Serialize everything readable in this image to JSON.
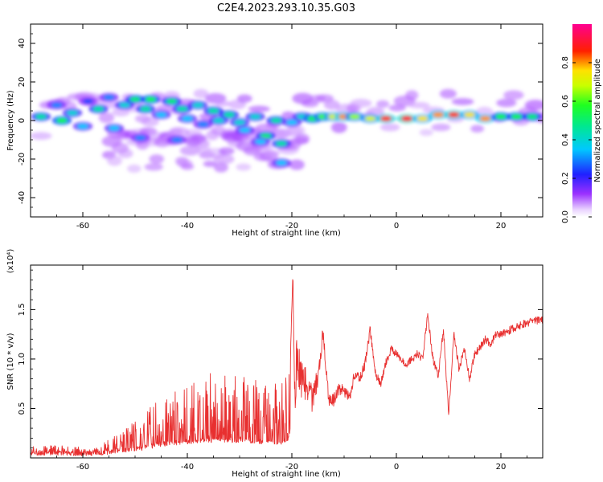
{
  "title": "C2E4.2023.293.10.35.G03",
  "chart_data": [
    {
      "type": "heatmap",
      "title": "C2E4.2023.293.10.35.G03",
      "xlabel": "Height of straight line (km)",
      "ylabel": "Frequency (Hz)",
      "xlim": [
        -70,
        28
      ],
      "ylim": [
        -50,
        50
      ],
      "xticks": [
        -60,
        -40,
        -20,
        0,
        20
      ],
      "yticks": [
        -40,
        -20,
        0,
        20,
        40
      ],
      "colorbar": {
        "label": "Normalized spectral amplitude",
        "range": [
          0,
          1
        ],
        "ticks": [
          "0.0",
          "0.2",
          "0.4",
          "0.6",
          "0.8"
        ],
        "colormap": "rainbow (purple-blue-cyan-green-yellow-red-magenta)"
      },
      "features": [
        {
          "name": "main band",
          "x": [
            -68,
            28
          ],
          "freq": [
            -8,
            14
          ],
          "note": "descends from ~+10 Hz near -55 km to ~0 Hz near -18 km, then flat near +2 Hz"
        },
        {
          "name": "lower branch",
          "x": [
            -55,
            -18
          ],
          "freq": [
            -25,
            -5
          ],
          "note": "descending weaker branch"
        }
      ],
      "blobs": [
        {
          "x": -68,
          "f": 2,
          "v": 0.45
        },
        {
          "x": -65,
          "f": 8,
          "v": 0.3
        },
        {
          "x": -64,
          "f": 0,
          "v": 0.55
        },
        {
          "x": -62,
          "f": 4,
          "v": 0.4
        },
        {
          "x": -60,
          "f": -3,
          "v": 0.35
        },
        {
          "x": -59,
          "f": 10,
          "v": 0.25
        },
        {
          "x": -57,
          "f": 6,
          "v": 0.45
        },
        {
          "x": -55,
          "f": 12,
          "v": 0.3
        },
        {
          "x": -54,
          "f": -4,
          "v": 0.35
        },
        {
          "x": -52,
          "f": 8,
          "v": 0.4
        },
        {
          "x": -50,
          "f": 11,
          "v": 0.5
        },
        {
          "x": -48,
          "f": 6,
          "v": 0.45
        },
        {
          "x": -47,
          "f": 11,
          "v": 0.55
        },
        {
          "x": -45,
          "f": 3,
          "v": 0.35
        },
        {
          "x": -43,
          "f": 10,
          "v": 0.5
        },
        {
          "x": -41,
          "f": 6,
          "v": 0.45
        },
        {
          "x": -40,
          "f": 1,
          "v": 0.35
        },
        {
          "x": -38,
          "f": 8,
          "v": 0.4
        },
        {
          "x": -37,
          "f": -2,
          "v": 0.3
        },
        {
          "x": -35,
          "f": 5,
          "v": 0.45
        },
        {
          "x": -34,
          "f": 0,
          "v": 0.4
        },
        {
          "x": -32,
          "f": 3,
          "v": 0.45
        },
        {
          "x": -30,
          "f": -1,
          "v": 0.4
        },
        {
          "x": -29,
          "f": -5,
          "v": 0.35
        },
        {
          "x": -27,
          "f": 2,
          "v": 0.4
        },
        {
          "x": -25,
          "f": -8,
          "v": 0.5
        },
        {
          "x": -23,
          "f": 0,
          "v": 0.45
        },
        {
          "x": -22,
          "f": -12,
          "v": 0.45
        },
        {
          "x": -20,
          "f": -1,
          "v": 0.35
        },
        {
          "x": -18,
          "f": 2,
          "v": 0.4
        },
        {
          "x": -49,
          "f": -9,
          "v": 0.3
        },
        {
          "x": -42,
          "f": -10,
          "v": 0.3
        },
        {
          "x": -26,
          "f": -11,
          "v": 0.35
        },
        {
          "x": -22,
          "f": -22,
          "v": 0.35
        },
        {
          "x": -16,
          "f": 1,
          "v": 0.55
        },
        {
          "x": -14,
          "f": 2,
          "v": 0.6
        },
        {
          "x": -12,
          "f": 2,
          "v": 0.7
        },
        {
          "x": -10,
          "f": 2,
          "v": 0.8
        },
        {
          "x": -8,
          "f": 2,
          "v": 0.65
        },
        {
          "x": -5,
          "f": 1,
          "v": 0.7
        },
        {
          "x": -2,
          "f": 1,
          "v": 0.85
        },
        {
          "x": 2,
          "f": 1,
          "v": 0.9
        },
        {
          "x": 5,
          "f": 1,
          "v": 0.75
        },
        {
          "x": 8,
          "f": 3,
          "v": 0.8
        },
        {
          "x": 11,
          "f": 3,
          "v": 0.85
        },
        {
          "x": 14,
          "f": 3,
          "v": 0.75
        },
        {
          "x": 17,
          "f": 1,
          "v": 0.8
        },
        {
          "x": 20,
          "f": 2,
          "v": 0.55
        },
        {
          "x": 23,
          "f": 2,
          "v": 0.55
        },
        {
          "x": 26,
          "f": 2,
          "v": 0.5
        }
      ]
    },
    {
      "type": "line",
      "xlabel": "Height of straight line (km)",
      "ylabel": "SNR (10 * v/v)",
      "y_multiplier": "(x10⁴)",
      "xlim": [
        -70,
        28
      ],
      "ylim": [
        0,
        1.95
      ],
      "xticks": [
        -60,
        -40,
        -20,
        0,
        20
      ],
      "yticks": [
        "0.5",
        "1.0",
        "1.5"
      ],
      "series": [
        {
          "color": "#e83030",
          "x": [
            -70,
            -66,
            -62,
            -58,
            -55,
            -52,
            -49,
            -46,
            -43,
            -40,
            -37,
            -34,
            -31,
            -28,
            -25,
            -22,
            -20.5,
            -19.8,
            -19.5,
            -19,
            -18,
            -17,
            -16,
            -15,
            -14,
            -13,
            -12,
            -11,
            -10,
            -9,
            -8,
            -7,
            -6,
            -5,
            -4,
            -3,
            -2,
            -1,
            0,
            1,
            2,
            3,
            4,
            5,
            6,
            7,
            8,
            9,
            10,
            11,
            12,
            13,
            14,
            15,
            16,
            17,
            18,
            19,
            20,
            22,
            24,
            26,
            28
          ],
          "y": [
            0.06,
            0.07,
            0.06,
            0.05,
            0.1,
            0.16,
            0.2,
            0.3,
            0.36,
            0.4,
            0.42,
            0.46,
            0.44,
            0.42,
            0.4,
            0.38,
            0.5,
            1.9,
            0.6,
            1.0,
            0.75,
            0.7,
            0.6,
            0.82,
            1.28,
            0.6,
            0.58,
            0.7,
            0.68,
            0.6,
            0.85,
            0.8,
            0.95,
            1.3,
            0.85,
            0.75,
            0.96,
            1.1,
            1.05,
            0.98,
            0.95,
            1.0,
            1.05,
            1.0,
            1.45,
            1.0,
            0.82,
            1.3,
            0.45,
            1.25,
            0.9,
            1.1,
            0.8,
            1.05,
            1.12,
            1.2,
            1.15,
            1.25,
            1.25,
            1.3,
            1.35,
            1.38,
            1.4
          ]
        }
      ],
      "noise_amplitude": [
        0.03,
        0.03,
        0.04,
        0.05,
        0.1,
        0.15,
        0.18,
        0.25,
        0.3,
        0.35,
        0.35,
        0.38,
        0.38,
        0.38,
        0.36,
        0.35,
        0.2,
        0,
        0.25,
        0.3,
        0.2,
        0.2,
        0.15,
        0.1,
        0.08,
        0.08,
        0.08,
        0.06,
        0.06,
        0.06,
        0.05,
        0.05,
        0.05,
        0.05,
        0.05,
        0.04,
        0.04,
        0.04,
        0.04,
        0.04,
        0.04,
        0.04,
        0.04,
        0.04,
        0.04,
        0.04,
        0.04,
        0.04,
        0.04,
        0.04,
        0.04,
        0.04,
        0.04,
        0.04,
        0.04,
        0.04,
        0.04,
        0.04,
        0.04,
        0.04,
        0.04,
        0.04,
        0.04
      ]
    }
  ]
}
